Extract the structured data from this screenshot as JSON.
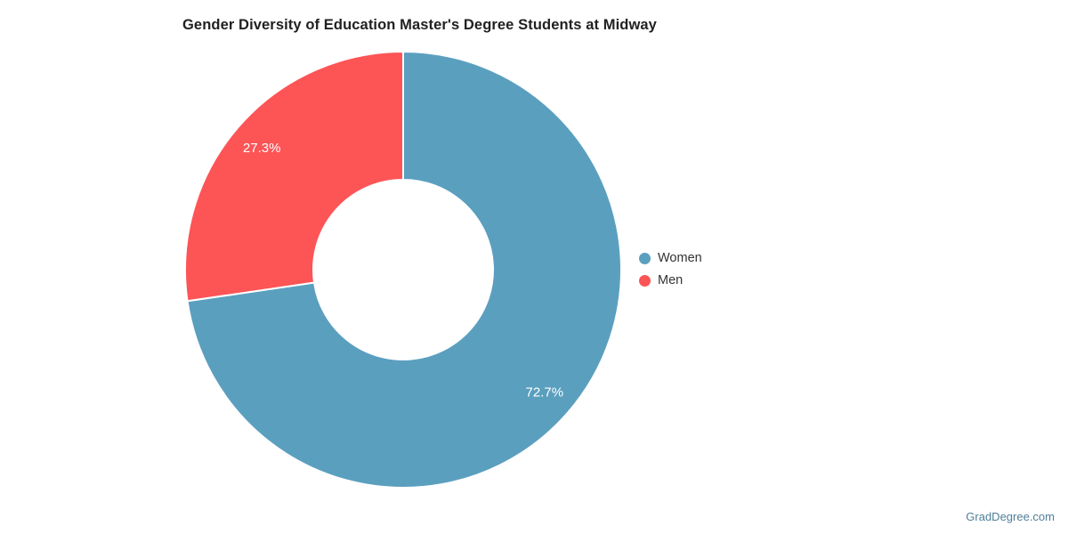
{
  "title": "Gender Diversity of Education Master's Degree Students at Midway",
  "chart_data": {
    "type": "pie",
    "subtype": "donut",
    "title": "Gender Diversity of Education Master's Degree Students at Midway",
    "categories": [
      "Women",
      "Men"
    ],
    "values": [
      72.7,
      27.3
    ],
    "slice_labels": [
      "72.7%",
      "27.3%"
    ],
    "colors": [
      "#5B9FBF",
      "#FD5456"
    ],
    "slice_border_color": "#FFFFFF",
    "legend": {
      "position": "right",
      "items": [
        {
          "label": "Women",
          "color": "#5B9FBF"
        },
        {
          "label": "Men",
          "color": "#FD5456"
        }
      ]
    }
  },
  "watermark": "GradDegree.com"
}
